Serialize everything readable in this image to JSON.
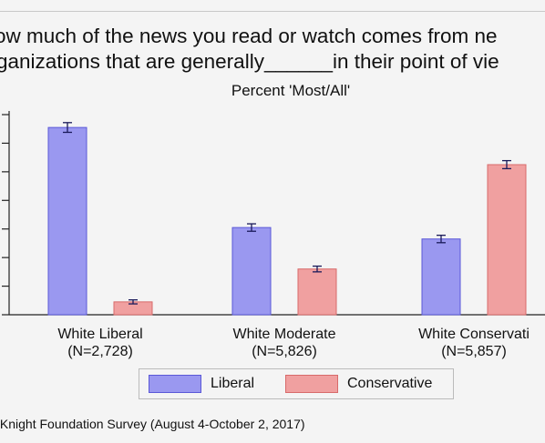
{
  "question": {
    "line1": "ow much of the news you read or watch comes from ne",
    "line2": "ganizations that are generally______in their point of vie"
  },
  "chart_data": {
    "type": "bar",
    "title": "",
    "subtitle": "Percent 'Most/All'",
    "xlabel": "",
    "ylabel": "",
    "ylim": [
      0,
      7
    ],
    "y_ticks": [
      0,
      1,
      2,
      3,
      4,
      5,
      6,
      7
    ],
    "grid": false,
    "categories": [
      {
        "name": "White Liberal",
        "n": "(N=2,728)"
      },
      {
        "name": "White Moderate",
        "n": "(N=5,826)"
      },
      {
        "name": "White Conservati",
        "n": "(N=5,857)"
      }
    ],
    "series": [
      {
        "name": "Liberal",
        "color": "#9a98f0",
        "edge": "#5a58d8",
        "values": [
          6.55,
          3.05,
          2.65
        ],
        "err": [
          0.17,
          0.13,
          0.13
        ]
      },
      {
        "name": "Conservative",
        "color": "#f0a0a0",
        "edge": "#d86a6a",
        "values": [
          0.45,
          1.6,
          5.25
        ],
        "err": [
          0.07,
          0.1,
          0.14
        ]
      }
    ],
    "legend_position": "bottom"
  },
  "source": "/Knight Foundation Survey (August 4-October 2, 2017)"
}
